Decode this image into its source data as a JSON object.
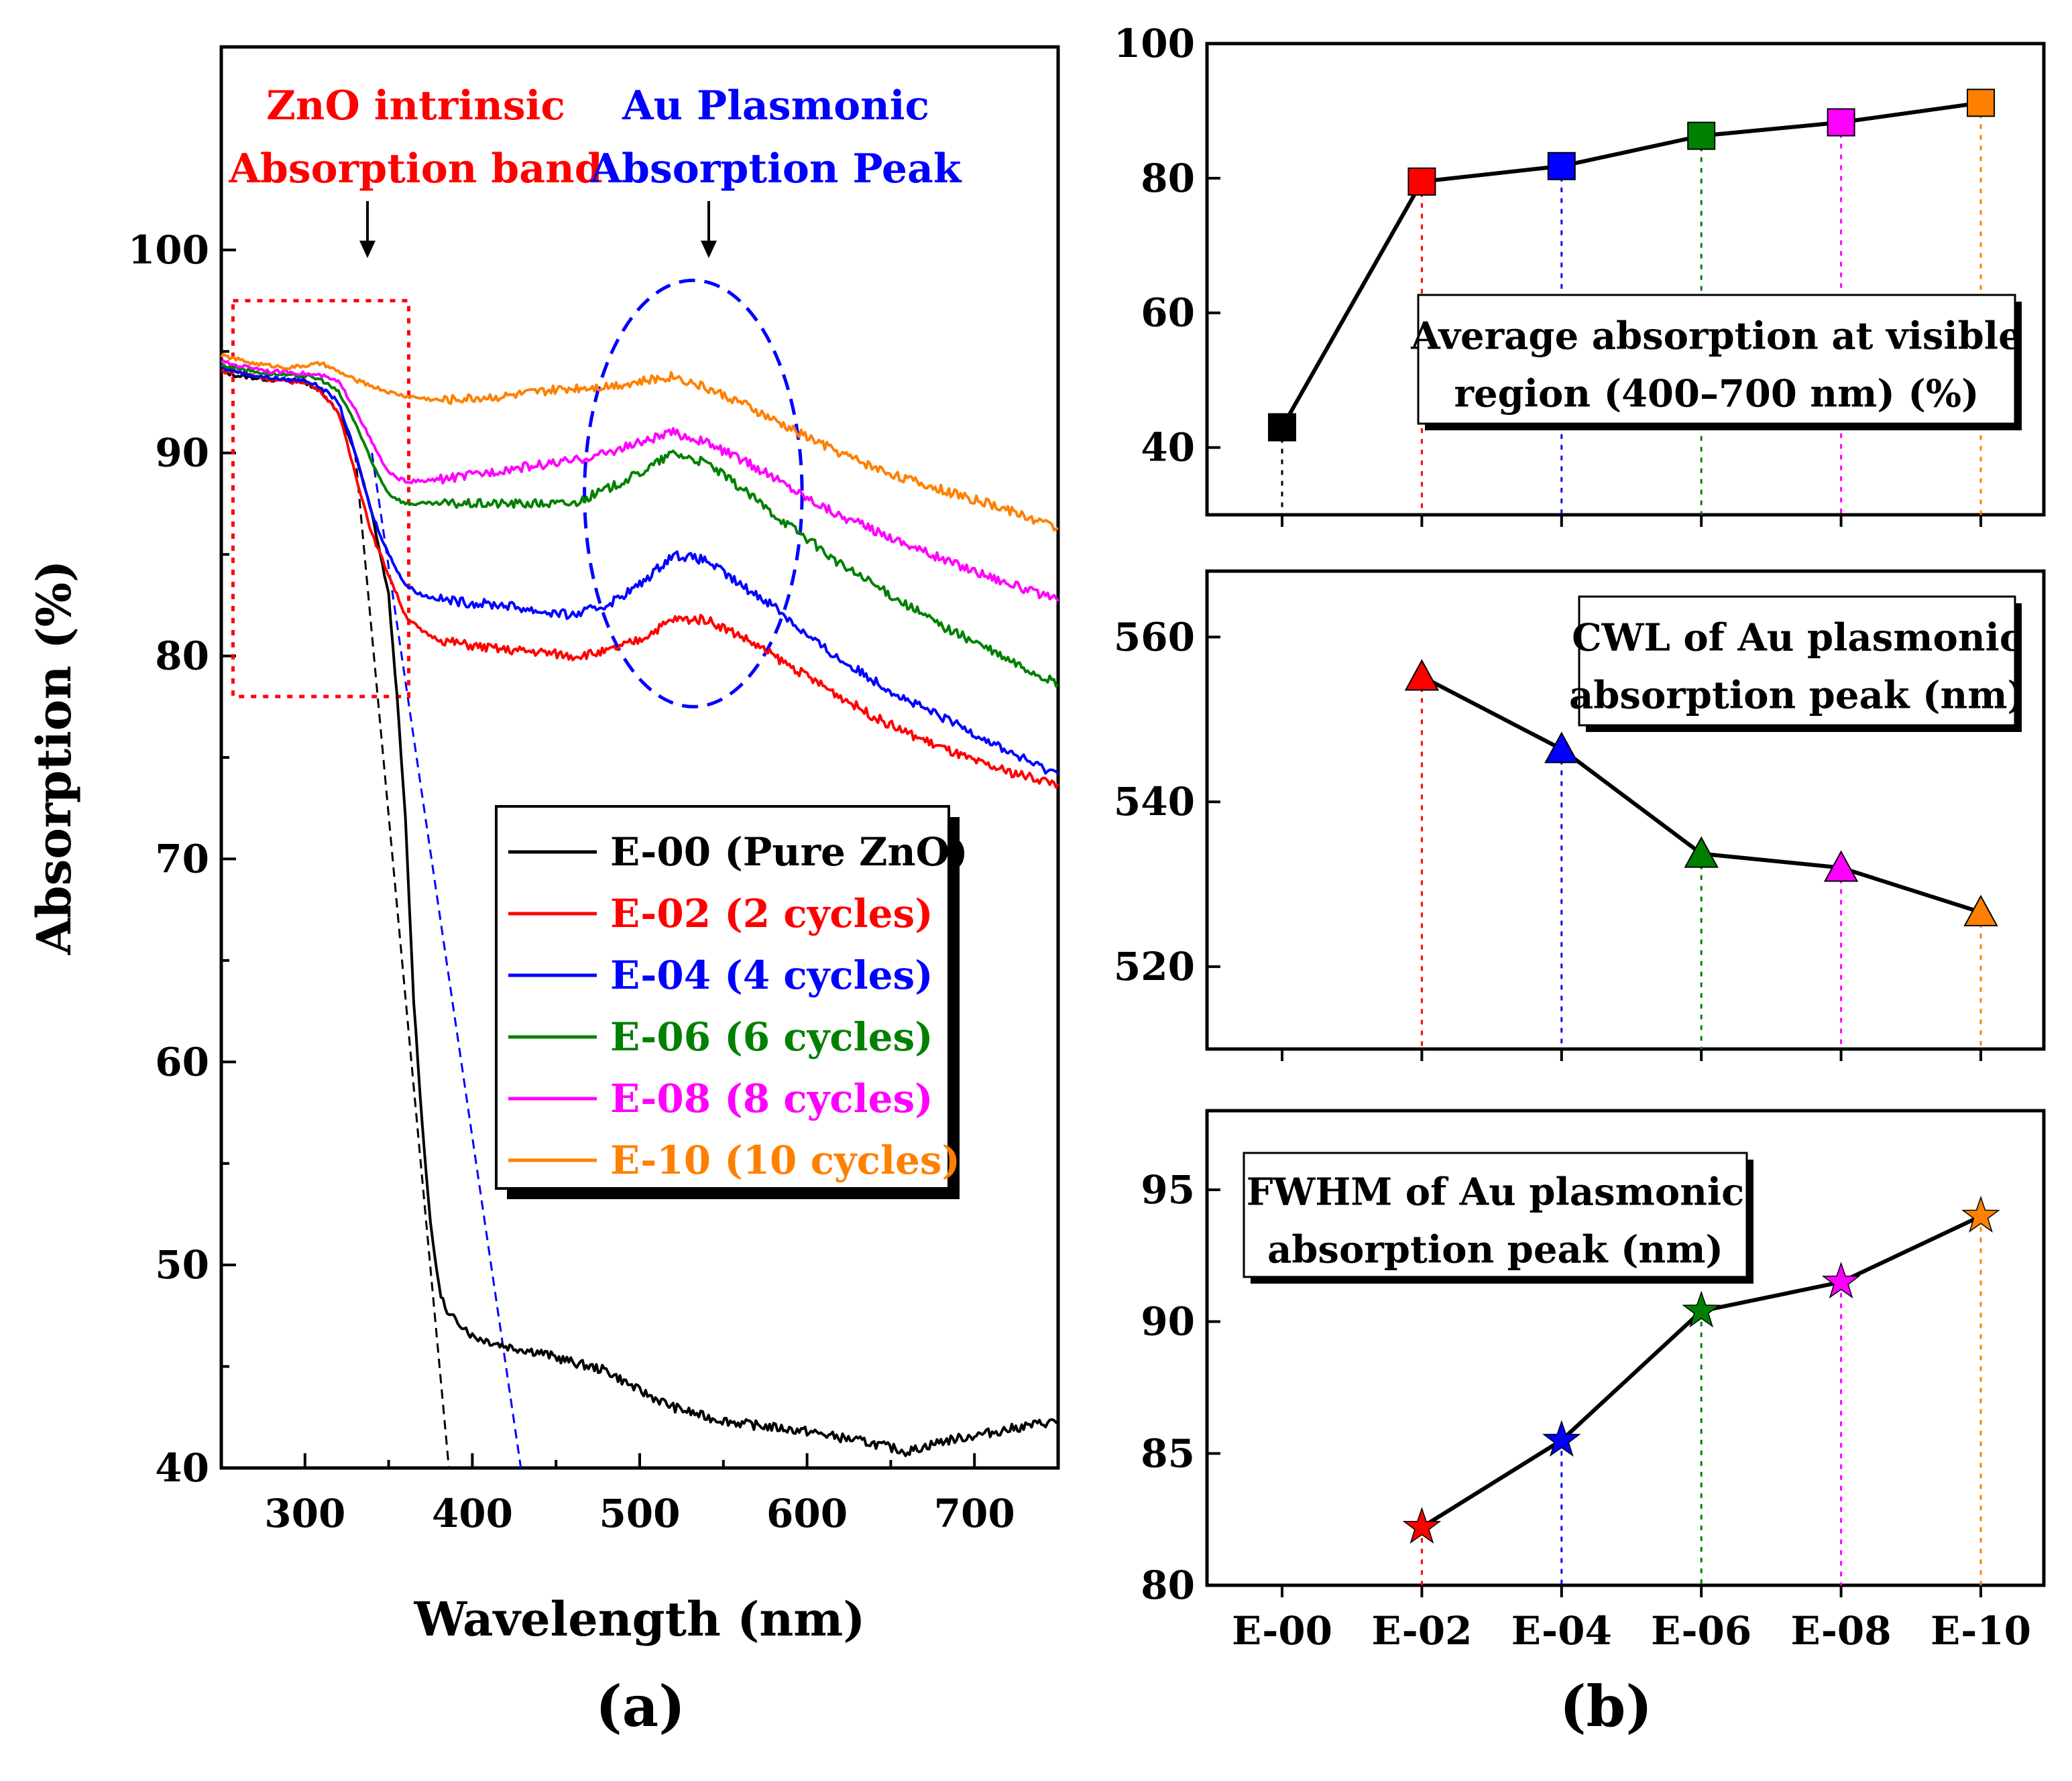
{
  "panel_labels": {
    "a": "(a)",
    "b": "(b)"
  },
  "chart_data": [
    {
      "id": "a",
      "type": "line",
      "xlabel": "Wavelength (nm)",
      "ylabel": "Absorption (%)",
      "xlim": [
        250,
        750
      ],
      "ylim": [
        40,
        110
      ],
      "xticks": [
        300,
        400,
        500,
        600,
        700
      ],
      "yticks": [
        40,
        50,
        60,
        70,
        80,
        90,
        100
      ],
      "annotations": {
        "zno_line1": "ZnO intrinsic",
        "zno_line2": "Absorption band",
        "au_line1": "Au Plasmonic",
        "au_line2": "Absorption Peak"
      },
      "series": [
        {
          "name": "E-00 (Pure ZnO)",
          "color": "#000000",
          "x": [
            250,
            260,
            270,
            280,
            290,
            300,
            310,
            320,
            330,
            340,
            345,
            350,
            355,
            360,
            365,
            370,
            375,
            380,
            385,
            390,
            395,
            400,
            420,
            440,
            460,
            480,
            500,
            520,
            540,
            560,
            580,
            600,
            620,
            640,
            660,
            680,
            700,
            720,
            740,
            750
          ],
          "y": [
            94.0,
            93.8,
            93.7,
            93.6,
            93.6,
            93.5,
            93.0,
            92.0,
            90.0,
            87.0,
            85.0,
            83.0,
            78.0,
            72.0,
            63.0,
            57.0,
            52.0,
            49.0,
            47.5,
            47.3,
            47.0,
            46.5,
            46.0,
            45.7,
            45.2,
            44.8,
            43.8,
            43.0,
            42.5,
            42.2,
            42.0,
            41.8,
            41.5,
            41.2,
            40.8,
            41.3,
            41.6,
            41.9,
            42.2,
            42.3
          ]
        },
        {
          "name": "E-02 (2 cycles)",
          "color": "#ff0000",
          "x": [
            250,
            260,
            270,
            280,
            290,
            300,
            310,
            320,
            330,
            340,
            350,
            360,
            370,
            380,
            400,
            420,
            440,
            460,
            480,
            500,
            520,
            540,
            560,
            580,
            600,
            620,
            640,
            660,
            680,
            700,
            720,
            740,
            750
          ],
          "y": [
            94.0,
            94.0,
            93.8,
            93.6,
            93.5,
            93.5,
            93.0,
            92.0,
            89.0,
            86.0,
            84.0,
            82.0,
            81.2,
            80.8,
            80.5,
            80.3,
            80.2,
            80.0,
            80.2,
            80.8,
            81.8,
            81.8,
            81.0,
            80.0,
            79.0,
            78.0,
            77.0,
            76.2,
            75.5,
            74.8,
            74.3,
            73.9,
            73.7
          ]
        },
        {
          "name": "E-04 (4 cycles)",
          "color": "#0000ff",
          "x": [
            250,
            260,
            270,
            280,
            290,
            300,
            310,
            320,
            330,
            340,
            350,
            360,
            370,
            380,
            400,
            420,
            440,
            460,
            480,
            500,
            520,
            540,
            560,
            580,
            600,
            620,
            640,
            660,
            680,
            700,
            720,
            740,
            750
          ],
          "y": [
            94.2,
            94.0,
            93.8,
            93.7,
            93.6,
            93.6,
            93.2,
            92.5,
            90.0,
            87.0,
            85.0,
            83.5,
            83.0,
            82.8,
            82.6,
            82.5,
            82.2,
            82.0,
            82.5,
            83.5,
            85.0,
            84.7,
            83.5,
            82.5,
            81.0,
            79.8,
            78.8,
            77.8,
            77.0,
            76.2,
            75.3,
            74.5,
            74.2
          ]
        },
        {
          "name": "E-06 (6 cycles)",
          "color": "#008000",
          "x": [
            250,
            260,
            270,
            280,
            290,
            300,
            310,
            320,
            330,
            340,
            350,
            360,
            370,
            380,
            400,
            420,
            440,
            460,
            480,
            500,
            520,
            540,
            560,
            580,
            600,
            620,
            640,
            660,
            680,
            700,
            720,
            740,
            750
          ],
          "y": [
            94.3,
            94.2,
            94.0,
            93.9,
            93.8,
            93.8,
            93.6,
            93.0,
            91.5,
            89.5,
            88.0,
            87.5,
            87.5,
            87.5,
            87.5,
            87.5,
            87.5,
            87.5,
            88.2,
            89.0,
            90.0,
            89.5,
            88.3,
            87.0,
            85.8,
            84.5,
            83.5,
            82.5,
            81.5,
            80.7,
            79.8,
            79.0,
            78.6
          ]
        },
        {
          "name": "E-08 (8 cycles)",
          "color": "#ff00ff",
          "x": [
            250,
            260,
            270,
            280,
            290,
            300,
            310,
            320,
            330,
            340,
            350,
            360,
            370,
            380,
            400,
            420,
            440,
            460,
            480,
            500,
            520,
            540,
            560,
            580,
            600,
            620,
            640,
            660,
            680,
            700,
            720,
            740,
            750
          ],
          "y": [
            94.5,
            94.3,
            94.2,
            94.0,
            94.0,
            93.9,
            93.8,
            93.5,
            92.2,
            90.5,
            89.0,
            88.6,
            88.6,
            88.7,
            88.9,
            89.2,
            89.4,
            89.6,
            90.0,
            90.5,
            91.0,
            90.5,
            89.7,
            88.8,
            87.8,
            86.9,
            86.2,
            85.5,
            84.8,
            84.2,
            83.6,
            83.0,
            82.7
          ]
        },
        {
          "name": "E-10 (10 cycles)",
          "color": "#ff8000",
          "x": [
            250,
            260,
            270,
            280,
            290,
            300,
            310,
            320,
            330,
            340,
            350,
            360,
            370,
            380,
            400,
            420,
            440,
            460,
            480,
            500,
            520,
            540,
            560,
            580,
            600,
            620,
            640,
            660,
            680,
            700,
            720,
            740,
            750
          ],
          "y": [
            94.8,
            94.6,
            94.4,
            94.3,
            94.2,
            94.3,
            94.4,
            94.0,
            93.6,
            93.3,
            93.0,
            92.8,
            92.7,
            92.6,
            92.7,
            92.8,
            93.0,
            93.2,
            93.3,
            93.5,
            93.8,
            93.2,
            92.5,
            91.6,
            90.8,
            90.0,
            89.3,
            88.7,
            88.2,
            87.7,
            87.2,
            86.6,
            86.3
          ]
        }
      ]
    },
    {
      "id": "b1",
      "type": "line",
      "title": "Average absorption at visible region (400–700 nm) (%)",
      "title_line1": "Average absorption at visible",
      "title_line2": "region (400–700 nm) (%)",
      "categories": [
        "E-00",
        "E-02",
        "E-04",
        "E-06",
        "E-08",
        "E-10"
      ],
      "values": [
        43,
        79.5,
        81.8,
        86.3,
        88.3,
        91.2
      ],
      "marker": "square",
      "ylim": [
        30,
        100
      ],
      "yticks": [
        40,
        60,
        80,
        100
      ]
    },
    {
      "id": "b2",
      "type": "line",
      "title": "CWL of Au plasmonic absorption peak (nm)",
      "title_line1": "CWL of  Au plasmonic",
      "title_line2": "absorption peak (nm)",
      "categories": [
        "E-00",
        "E-02",
        "E-04",
        "E-06",
        "E-08",
        "E-10"
      ],
      "values": [
        null,
        555.2,
        546.4,
        533.7,
        532.0,
        526.6
      ],
      "marker": "triangle",
      "ylim": [
        510,
        568
      ],
      "yticks": [
        520,
        540,
        560
      ]
    },
    {
      "id": "b3",
      "type": "line",
      "title": "FWHM of Au plasmonic absorption peak (nm)",
      "title_line1": "FWHM of Au plasmonic",
      "title_line2": "absorption peak (nm)",
      "categories": [
        "E-00",
        "E-02",
        "E-04",
        "E-06",
        "E-08",
        "E-10"
      ],
      "values": [
        null,
        82.2,
        85.5,
        90.4,
        91.5,
        94.0
      ],
      "marker": "star",
      "ylim": [
        80,
        98
      ],
      "yticks": [
        80,
        85,
        90,
        95
      ]
    }
  ],
  "category_colors": [
    "#000000",
    "#ff0000",
    "#0000ff",
    "#008000",
    "#ff00ff",
    "#ff8000"
  ]
}
